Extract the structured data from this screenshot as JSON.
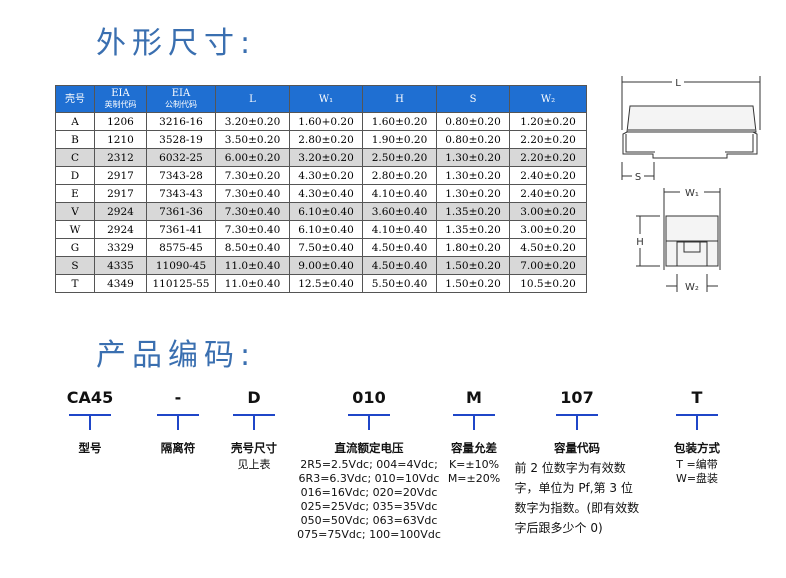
{
  "section1_title": "外形尺寸:",
  "section2_title": "产品编码:",
  "table": {
    "headers": [
      {
        "main": "壳号",
        "sub": ""
      },
      {
        "main": "EIA",
        "sub": "英制代码"
      },
      {
        "main": "EIA",
        "sub": "公制代码"
      },
      {
        "main": "L",
        "sub": ""
      },
      {
        "main": "W₁",
        "sub": ""
      },
      {
        "main": "H",
        "sub": ""
      },
      {
        "main": "S",
        "sub": ""
      },
      {
        "main": "W₂",
        "sub": ""
      }
    ],
    "rows": [
      {
        "shaded": false,
        "cells": [
          "A",
          "1206",
          "3216-16",
          "3.20±0.20",
          "1.60+0.20",
          "1.60±0.20",
          "0.80±0.20",
          "1.20±0.20"
        ]
      },
      {
        "shaded": false,
        "cells": [
          "B",
          "1210",
          "3528-19",
          "3.50±0.20",
          "2.80±0.20",
          "1.90±0.20",
          "0.80±0.20",
          "2.20±0.20"
        ]
      },
      {
        "shaded": true,
        "cells": [
          "C",
          "2312",
          "6032-25",
          "6.00±0.20",
          "3.20±0.20",
          "2.50±0.20",
          "1.30±0.20",
          "2.20±0.20"
        ]
      },
      {
        "shaded": false,
        "cells": [
          "D",
          "2917",
          "7343-28",
          "7.30±0.20",
          "4.30±0.20",
          "2.80±0.20",
          "1.30±0.20",
          "2.40±0.20"
        ]
      },
      {
        "shaded": false,
        "cells": [
          "E",
          "2917",
          "7343-43",
          "7.30±0.40",
          "4.30±0.40",
          "4.10±0.40",
          "1.30±0.20",
          "2.40±0.20"
        ]
      },
      {
        "shaded": true,
        "cells": [
          "V",
          "2924",
          "7361-36",
          "7.30±0.40",
          "6.10±0.40",
          "3.60±0.40",
          "1.35±0.20",
          "3.00±0.20"
        ]
      },
      {
        "shaded": false,
        "cells": [
          "W",
          "2924",
          "7361-41",
          "7.30±0.40",
          "6.10±0.40",
          "4.10±0.40",
          "1.35±0.20",
          "3.00±0.20"
        ]
      },
      {
        "shaded": false,
        "cells": [
          "G",
          "3329",
          "8575-45",
          "8.50±0.40",
          "7.50±0.40",
          "4.50±0.40",
          "1.80±0.20",
          "4.50±0.20"
        ]
      },
      {
        "shaded": true,
        "cells": [
          "S",
          "4335",
          "11090-45",
          "11.0±0.40",
          "9.00±0.40",
          "4.50±0.40",
          "1.50±0.20",
          "7.00±0.20"
        ]
      },
      {
        "shaded": false,
        "cells": [
          "T",
          "4349",
          "110125-55",
          "11.0±0.40",
          "12.5±0.40",
          "5.50±0.40",
          "1.50±0.20",
          "10.5±0.20"
        ]
      }
    ]
  },
  "diagram": {
    "L": "L",
    "S": "S",
    "W1": "W₁",
    "H": "H",
    "W2": "W₂"
  },
  "part_code": [
    {
      "code": "CA45",
      "label": "型号",
      "desc": []
    },
    {
      "code": "-",
      "label": "隔离符",
      "desc": []
    },
    {
      "code": "D",
      "label": "壳号尺寸",
      "desc": [
        "见上表"
      ]
    },
    {
      "code": "010",
      "label": "直流额定电压",
      "desc": [
        "2R5=2.5Vdc; 004=4Vdc;",
        "6R3=6.3Vdc; 010=10Vdc",
        "016=16Vdc; 020=20Vdc",
        "025=25Vdc; 035=35Vdc",
        "050=50Vdc; 063=63Vdc",
        "075=75Vdc; 100=100Vdc"
      ]
    },
    {
      "code": "M",
      "label": "容量允差",
      "desc": [
        "K=±10%",
        "M=±20%"
      ]
    },
    {
      "code": "107",
      "label": "容量代码",
      "desc": [
        "前 2 位数字为有效数字，单位为 Pf,第 3 位数字为指数。(即有效数字后跟多少个 0)"
      ]
    },
    {
      "code": "T",
      "label": "包装方式",
      "desc": [
        "T =编带",
        "W=盘装"
      ]
    }
  ],
  "colors": {
    "header_blue": "#1f6fd2",
    "title_blue": "#3a6fb0",
    "tee_blue": "#1f46c8",
    "shaded": "#d8d8d8"
  }
}
